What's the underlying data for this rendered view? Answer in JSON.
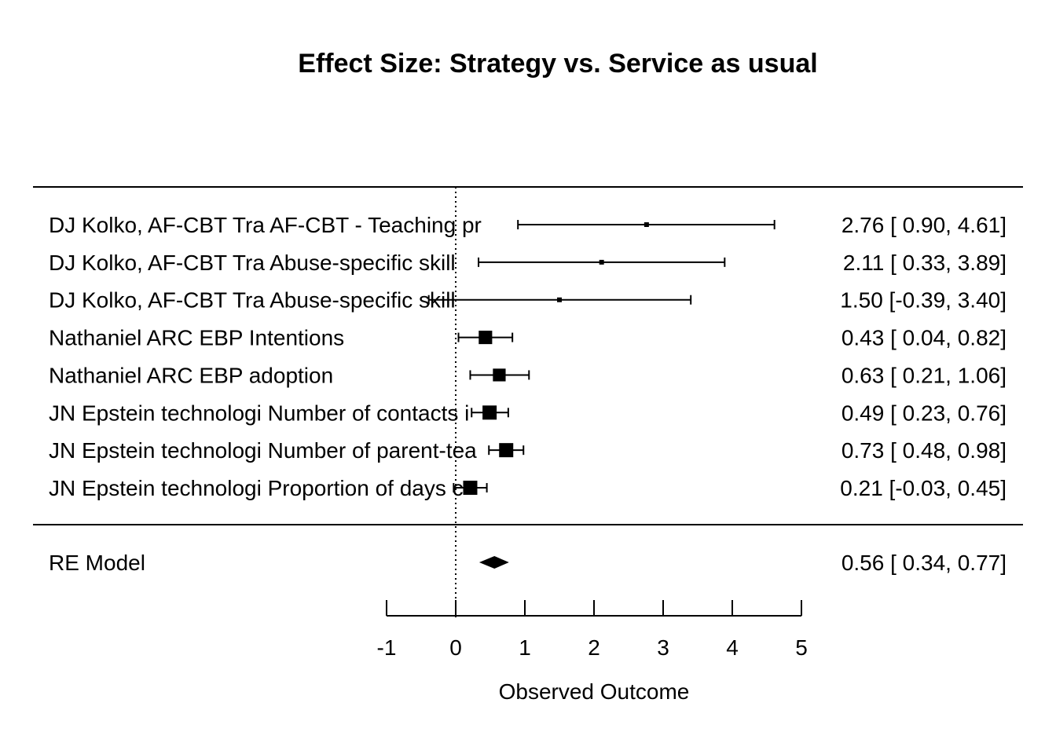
{
  "chart_data": {
    "type": "forest",
    "title": "Effect Size: Strategy vs. Service as usual",
    "xlabel": "Observed Outcome",
    "xlim": [
      -1,
      5
    ],
    "x_ticks": [
      -1,
      0,
      1,
      2,
      3,
      4,
      5
    ],
    "x_tick_labels": [
      "-1",
      "0",
      "1",
      "2",
      "3",
      "4",
      "5"
    ],
    "reference_line": 0,
    "studies": [
      {
        "label": "DJ Kolko,  AF-CBT Tra AF-CBT - Teaching pr",
        "estimate": 2.76,
        "lower": 0.9,
        "upper": 4.61,
        "ci_text": "2.76 [ 0.90, 4.61]",
        "weight_size": 0.22
      },
      {
        "label": "DJ Kolko,  AF-CBT Tra Abuse-specific skill",
        "estimate": 2.11,
        "lower": 0.33,
        "upper": 3.89,
        "ci_text": "2.11 [ 0.33, 3.89]",
        "weight_size": 0.22
      },
      {
        "label": "DJ Kolko,  AF-CBT Tra Abuse-specific skill",
        "estimate": 1.5,
        "lower": -0.39,
        "upper": 3.4,
        "ci_text": "1.50 [-0.39, 3.40]",
        "weight_size": 0.22
      },
      {
        "label": "Nathaniel  ARC EBP Intentions",
        "estimate": 0.43,
        "lower": 0.04,
        "upper": 0.82,
        "ci_text": "0.43 [ 0.04, 0.82]",
        "weight_size": 0.95
      },
      {
        "label": "Nathaniel  ARC EBP adoption",
        "estimate": 0.63,
        "lower": 0.21,
        "upper": 1.06,
        "ci_text": "0.63 [ 0.21, 1.06]",
        "weight_size": 0.9
      },
      {
        "label": "JN Epstein technologi Number of contacts i",
        "estimate": 0.49,
        "lower": 0.23,
        "upper": 0.76,
        "ci_text": "0.49 [ 0.23, 0.76]",
        "weight_size": 1.0
      },
      {
        "label": "JN Epstein technologi Number of parent-tea",
        "estimate": 0.73,
        "lower": 0.48,
        "upper": 0.98,
        "ci_text": "0.73 [ 0.48, 0.98]",
        "weight_size": 1.0
      },
      {
        "label": "JN Epstein technologi Proportion of days c",
        "estimate": 0.21,
        "lower": -0.03,
        "upper": 0.45,
        "ci_text": "0.21 [-0.03, 0.45]",
        "weight_size": 1.0
      }
    ],
    "summary": {
      "label": "RE Model",
      "estimate": 0.56,
      "lower": 0.34,
      "upper": 0.77,
      "ci_text": "0.56 [ 0.34, 0.77]"
    }
  }
}
